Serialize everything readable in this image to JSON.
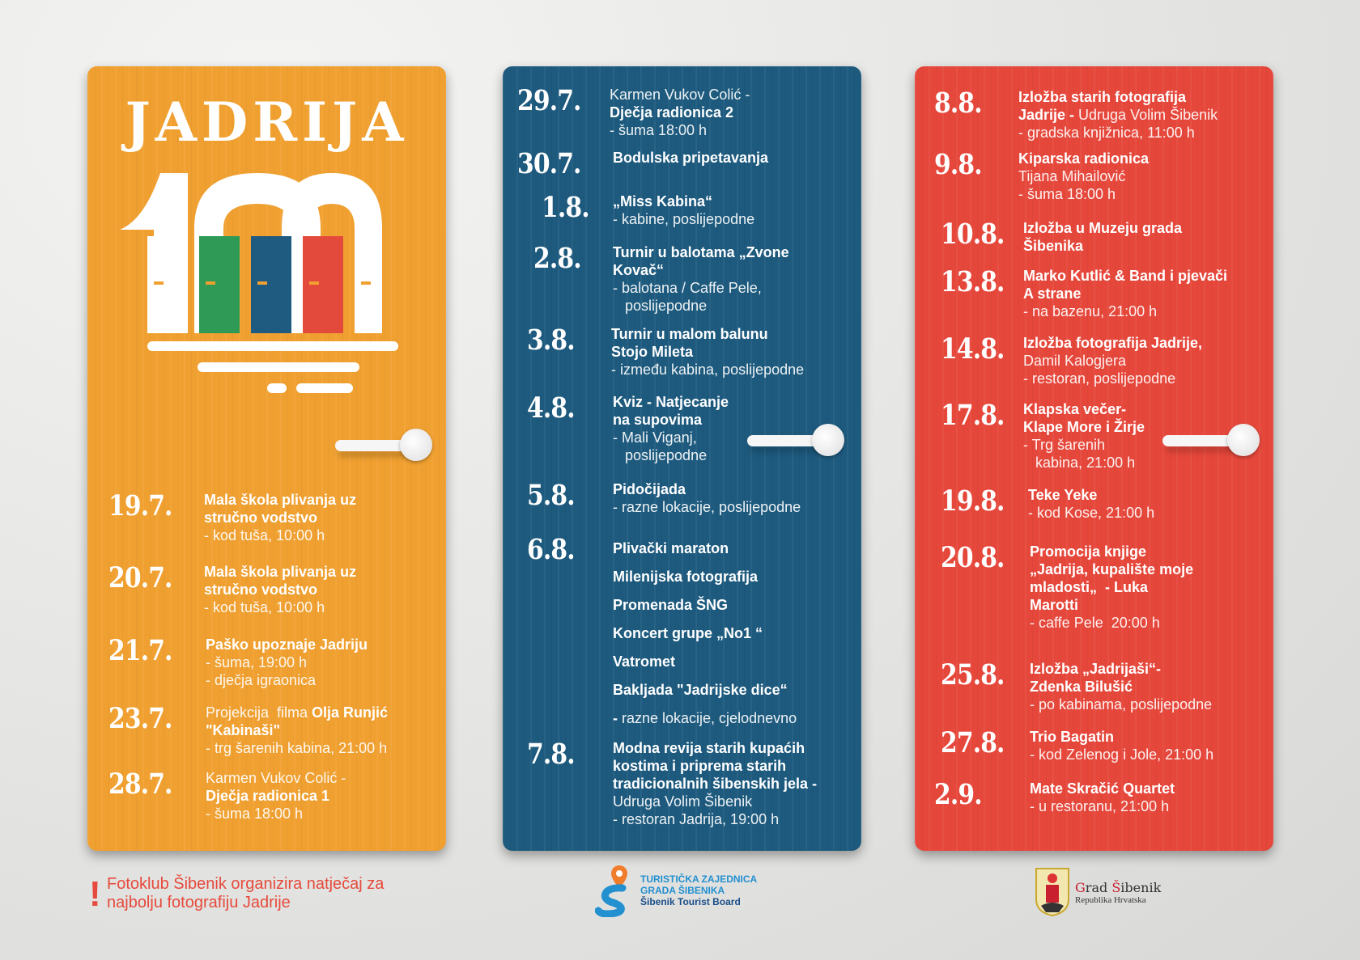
{
  "colors": {
    "orange": "#f0a030",
    "blue": "#1d5a7e",
    "red": "#e6473b",
    "green": "#2e9a55",
    "door_blue": "#1f5a80",
    "door_red": "#e44a3b"
  },
  "logo": {
    "title": "JADRIJA",
    "number": "100"
  },
  "panels": [
    {
      "id": "orange",
      "events": [
        {
          "date": "19.7.",
          "lines": [
            [
              {
                "t": "Mala škola plivanja uz",
                "b": true
              }
            ],
            [
              {
                "t": "stručno vodstvo",
                "b": true
              }
            ],
            [
              {
                "t": "- kod tuša, 10:00 h",
                "b": false
              }
            ]
          ]
        },
        {
          "date": "20.7.",
          "lines": [
            [
              {
                "t": "Mala škola plivanja uz",
                "b": true
              }
            ],
            [
              {
                "t": "stručno vodstvo",
                "b": true
              }
            ],
            [
              {
                "t": "- kod tuša, 10:00 h",
                "b": false
              }
            ]
          ]
        },
        {
          "date": "21.7.",
          "lines": [
            [
              {
                "t": "Paško upoznaje Jadriju",
                "b": true
              }
            ],
            [
              {
                "t": "- šuma, 19:00 h",
                "b": false
              }
            ],
            [
              {
                "t": "- dječja igraonica",
                "b": false
              }
            ]
          ]
        },
        {
          "date": "23.7.",
          "lines": [
            [
              {
                "t": "Projekcija  filma ",
                "b": false
              },
              {
                "t": "Olja Runjić",
                "b": true
              }
            ],
            [
              {
                "t": "\"Kabinaši\"",
                "b": true
              }
            ],
            [
              {
                "t": "- trg šarenih kabina, 21:00 h",
                "b": false
              }
            ]
          ]
        },
        {
          "date": "28.7.",
          "lines": [
            [
              {
                "t": "Karmen Vukov Colić -",
                "b": false
              }
            ],
            [
              {
                "t": "Dječja radionica 1",
                "b": true
              }
            ],
            [
              {
                "t": "- šuma 18:00 h",
                "b": false
              }
            ]
          ]
        }
      ]
    },
    {
      "id": "blue",
      "events": [
        {
          "date": "29.7.",
          "lines": [
            [
              {
                "t": "Karmen Vukov Colić -",
                "b": false
              }
            ],
            [
              {
                "t": "Dječja radionica 2",
                "b": true
              }
            ],
            [
              {
                "t": "- šuma 18:00 h",
                "b": false
              }
            ]
          ]
        },
        {
          "date": "30.7.",
          "lines": [
            [
              {
                "t": "Bodulska pripetavanja",
                "b": true
              }
            ]
          ]
        },
        {
          "date": "1.8.",
          "lines": [
            [
              {
                "t": "„Miss Kabina“",
                "b": true
              }
            ],
            [
              {
                "t": "- kabine, poslijepodne",
                "b": false
              }
            ]
          ]
        },
        {
          "date": "2.8.",
          "lines": [
            [
              {
                "t": "Turnir u balotama „Zvone",
                "b": true
              }
            ],
            [
              {
                "t": "Kovač“",
                "b": true
              }
            ],
            [
              {
                "t": "- balotana / Caffe Pele,",
                "b": false
              }
            ],
            [
              {
                "t": "   poslijepodne",
                "b": false
              }
            ]
          ]
        },
        {
          "date": "3.8.",
          "lines": [
            [
              {
                "t": "Turnir u malom balunu",
                "b": true
              }
            ],
            [
              {
                "t": "Stojo Mileta",
                "b": true
              }
            ],
            [
              {
                "t": "- između kabina, poslijepodne",
                "b": false
              }
            ]
          ]
        },
        {
          "date": "4.8.",
          "lines": [
            [
              {
                "t": "Kviz - Natjecanje",
                "b": true
              }
            ],
            [
              {
                "t": "na supovima",
                "b": true
              }
            ],
            [
              {
                "t": "- Mali Viganj,",
                "b": false
              }
            ],
            [
              {
                "t": "   poslijepodne",
                "b": false
              }
            ]
          ]
        },
        {
          "date": "5.8.",
          "lines": [
            [
              {
                "t": "Pidočijada",
                "b": true
              }
            ],
            [
              {
                "t": "- razne lokacije, poslijepodne",
                "b": false
              }
            ]
          ]
        },
        {
          "date": "6.8.",
          "spaced": true,
          "lines": [
            [
              {
                "t": "Plivački maraton",
                "b": true
              }
            ],
            [
              {
                "t": "Milenijska fotografija",
                "b": true
              }
            ],
            [
              {
                "t": "Promenada ŠNG",
                "b": true
              }
            ],
            [
              {
                "t": "Koncert grupe „No1 “",
                "b": true
              }
            ],
            [
              {
                "t": "Vatromet",
                "b": true
              }
            ],
            [
              {
                "t": "Bakljada \"Jadrijske dice“",
                "b": true
              }
            ],
            [
              {
                "t": "- ",
                "b": true
              },
              {
                "t": "razne lokacije, cjelodnevno",
                "b": false
              }
            ]
          ]
        },
        {
          "date": "7.8.",
          "lines": [
            [
              {
                "t": "Modna revija starih kupaćih",
                "b": true
              }
            ],
            [
              {
                "t": "kostima i priprema starih",
                "b": true
              }
            ],
            [
              {
                "t": "tradicionalnih šibenskih jela -",
                "b": true
              }
            ],
            [
              {
                "t": "Udruga Volim Šibenik",
                "b": false
              }
            ],
            [
              {
                "t": "- restoran Jadrija, 19:00 h",
                "b": false
              }
            ]
          ]
        }
      ]
    },
    {
      "id": "red",
      "events": [
        {
          "date": "8.8.",
          "lines": [
            [
              {
                "t": "Izložba starih fotografija",
                "b": true
              }
            ],
            [
              {
                "t": "Jadrije - ",
                "b": true
              },
              {
                "t": "Udruga Volim Šibenik",
                "b": false
              }
            ],
            [
              {
                "t": "- gradska knjižnica, 11:00 h",
                "b": false
              }
            ]
          ]
        },
        {
          "date": "9.8.",
          "lines": [
            [
              {
                "t": "Kiparska radionica",
                "b": true
              }
            ],
            [
              {
                "t": "Tijana Mihailović",
                "b": false
              }
            ],
            [
              {
                "t": "- šuma 18:00 h",
                "b": false
              }
            ]
          ]
        },
        {
          "date": "10.8.",
          "lines": [
            [
              {
                "t": "Izložba u Muzeju grada",
                "b": true
              }
            ],
            [
              {
                "t": "Šibenika",
                "b": true
              }
            ]
          ]
        },
        {
          "date": "13.8.",
          "lines": [
            [
              {
                "t": "Marko Kutlić & Band i pjevači",
                "b": true
              }
            ],
            [
              {
                "t": "A strane",
                "b": true
              }
            ],
            [
              {
                "t": "- na bazenu, 21:00 h",
                "b": false
              }
            ]
          ]
        },
        {
          "date": "14.8.",
          "lines": [
            [
              {
                "t": "Izložba fotografija Jadrije,",
                "b": true
              }
            ],
            [
              {
                "t": "Damil Kalogjera",
                "b": false
              }
            ],
            [
              {
                "t": "- restoran, poslijepodne",
                "b": false
              }
            ]
          ]
        },
        {
          "date": "17.8.",
          "lines": [
            [
              {
                "t": "Klapska večer-",
                "b": true
              }
            ],
            [
              {
                "t": "Klape More i Žirje",
                "b": true
              }
            ],
            [
              {
                "t": "- Trg šarenih",
                "b": false
              }
            ],
            [
              {
                "t": "   kabina, 21:00 h",
                "b": false
              }
            ]
          ]
        },
        {
          "date": "19.8.",
          "lines": [
            [
              {
                "t": "Teke Yeke",
                "b": true
              }
            ],
            [
              {
                "t": "- kod Kose, 21:00 h",
                "b": false
              }
            ]
          ]
        },
        {
          "date": "20.8.",
          "lines": [
            [
              {
                "t": "Promocija knjige",
                "b": true
              }
            ],
            [
              {
                "t": "„Jadrija, kupalište moje",
                "b": true
              }
            ],
            [
              {
                "t": "mladosti„  - Luka",
                "b": true
              }
            ],
            [
              {
                "t": "Marotti",
                "b": true
              }
            ],
            [
              {
                "t": "- caffe Pele  20:00 h",
                "b": false
              }
            ]
          ]
        },
        {
          "date": "25.8.",
          "lines": [
            [
              {
                "t": "Izložba „Jadrijaši“-",
                "b": true
              }
            ],
            [
              {
                "t": "Zdenka Bilušić",
                "b": true
              }
            ],
            [
              {
                "t": "- po kabinama, poslijepodne",
                "b": false
              }
            ]
          ]
        },
        {
          "date": "27.8.",
          "lines": [
            [
              {
                "t": "Trio Bagatin",
                "b": true
              }
            ],
            [
              {
                "t": "- kod Zelenog i Jole, 21:00 h",
                "b": false
              }
            ]
          ]
        },
        {
          "date": "2.9.",
          "lines": [
            [
              {
                "t": "Mate Skračić Quartet",
                "b": true
              }
            ],
            [
              {
                "t": "- u restoranu, 21:00 h",
                "b": false
              }
            ]
          ]
        }
      ]
    }
  ],
  "footer": {
    "notice_mark": "!",
    "notice_line1": "Fotoklub Šibenik organizira natječaj za",
    "notice_line2": "najbolju fotografiju Jadrije",
    "tz_line1": "TURISTIČKA ZAJEDNICA",
    "tz_line2": "GRADA ŠIBENIKA",
    "tz_line3": "Šibenik Tourist Board",
    "city_name": "Grad Šibenik",
    "city_sub": "Republika Hrvatska"
  }
}
